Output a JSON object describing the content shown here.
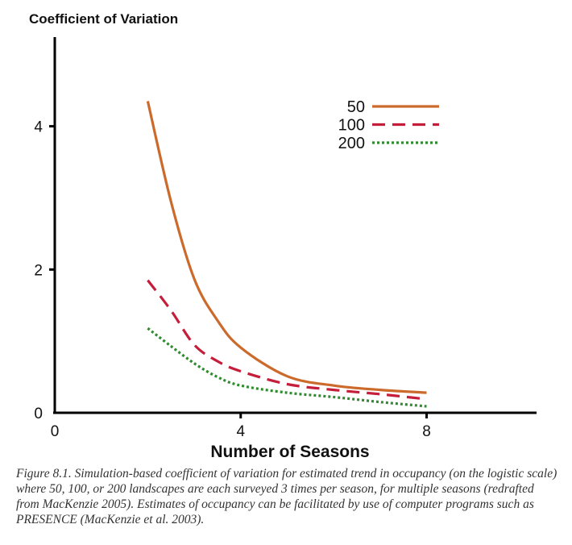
{
  "chart_data": {
    "type": "line",
    "title": "Coefficient of Variation",
    "xlabel": "Number of Seasons",
    "ylabel": "Coefficient of Variation",
    "xlim": [
      0,
      10.4
    ],
    "ylim": [
      0,
      5.2
    ],
    "x_ticks": [
      0,
      4,
      8
    ],
    "y_ticks": [
      0,
      2,
      4
    ],
    "legend_position": "top-right",
    "series": [
      {
        "name": "50",
        "color": "#cc6a2c",
        "style": "solid",
        "x": [
          2,
          2.5,
          3,
          3.5,
          4,
          5,
          6,
          7,
          8
        ],
        "y": [
          4.35,
          2.95,
          1.87,
          1.29,
          0.91,
          0.51,
          0.38,
          0.32,
          0.28
        ]
      },
      {
        "name": "100",
        "color": "#c41e3a",
        "style": "dashed",
        "x": [
          2,
          2.5,
          3,
          3.5,
          4,
          5,
          6,
          7,
          8
        ],
        "y": [
          1.85,
          1.43,
          0.95,
          0.72,
          0.58,
          0.4,
          0.32,
          0.26,
          0.19
        ]
      },
      {
        "name": "200",
        "color": "#2e8b2e",
        "style": "dotted",
        "x": [
          2,
          2.5,
          3,
          3.5,
          4,
          5,
          6,
          7,
          8
        ],
        "y": [
          1.18,
          0.93,
          0.69,
          0.5,
          0.38,
          0.28,
          0.22,
          0.15,
          0.09
        ]
      }
    ]
  },
  "caption": "Figure 8.1. Simulation-based coefficient of variation for estimated trend in occupancy (on the logistic scale) where 50, 100, or 200 landscapes are each surveyed 3 times per season, for multiple seasons (redrafted from MacKenzie 2005). Estimates of occupancy can be facilitated by use of computer programs such as PRESENCE (MacKenzie et al. 2003)."
}
